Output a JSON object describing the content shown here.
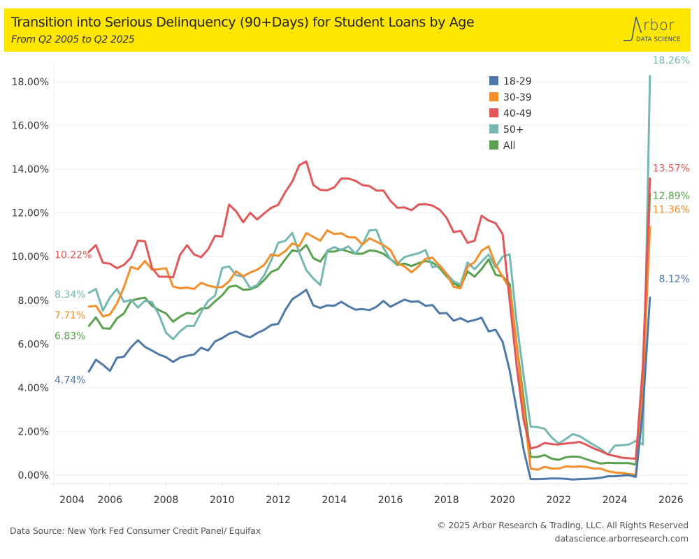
{
  "header": {
    "title": "Transition into Serious Delinquency (90+Days) for Student Loans by Age",
    "subtitle": "From Q2 2005 to Q2 2025",
    "logo_word": "rbor",
    "logo_sub": "DATA SCIENCE",
    "background_color": "#ffe600"
  },
  "footer": {
    "source": "Data Source: New York Fed Consumer Credit Panel/ Equifax",
    "copyright": "© 2025 Arbor Research & Trading, LLC. All Rights Reserved",
    "website": "datascience.arborresearch.com"
  },
  "chart_data": {
    "type": "line",
    "title": "Transition into Serious Delinquency (90+Days) for Student Loans by Age",
    "subtitle": "From Q2 2005 to Q2 2025",
    "xlabel": "",
    "ylabel": "",
    "x_start": 2005.25,
    "x_step": 0.25,
    "xlim": [
      2004,
      2026.4
    ],
    "ylim": [
      -0.3,
      19.2
    ],
    "x_ticks": [
      "2004",
      "2006",
      "2008",
      "2010",
      "2012",
      "2014",
      "2016",
      "2018",
      "2020",
      "2022",
      "2024",
      "2026"
    ],
    "y_ticks": [
      "0.00%",
      "2.00%",
      "4.00%",
      "6.00%",
      "8.00%",
      "10.00%",
      "12.00%",
      "14.00%",
      "16.00%",
      "18.00%"
    ],
    "grid": true,
    "legend_position": "top-right",
    "series": [
      {
        "name": "18-29",
        "color": "#4e79a7",
        "start_label": "4.74%",
        "end_label": "8.12%",
        "values": [
          4.74,
          5.28,
          5.05,
          4.77,
          5.37,
          5.42,
          5.85,
          6.17,
          5.87,
          5.7,
          5.52,
          5.4,
          5.18,
          5.38,
          5.46,
          5.52,
          5.83,
          5.7,
          6.12,
          6.27,
          6.47,
          6.57,
          6.4,
          6.3,
          6.5,
          6.65,
          6.87,
          6.92,
          7.55,
          8.05,
          8.25,
          8.48,
          7.77,
          7.65,
          7.77,
          7.75,
          7.93,
          7.73,
          7.57,
          7.6,
          7.55,
          7.7,
          7.97,
          7.7,
          7.87,
          8.03,
          7.93,
          7.95,
          7.75,
          7.78,
          7.4,
          7.42,
          7.07,
          7.18,
          7.02,
          7.1,
          7.2,
          6.58,
          6.65,
          6.1,
          4.8,
          3.0,
          1.15,
          -0.18,
          -0.18,
          -0.17,
          -0.15,
          -0.15,
          -0.17,
          -0.2,
          -0.18,
          -0.17,
          -0.15,
          -0.12,
          -0.05,
          -0.05,
          -0.02,
          0.0,
          -0.08,
          3.0,
          8.12
        ]
      },
      {
        "name": "30-39",
        "color": "#f28e2b",
        "start_label": "7.71%",
        "end_label": "11.36%",
        "values": [
          7.71,
          7.75,
          7.26,
          7.35,
          7.85,
          8.6,
          9.53,
          9.42,
          9.8,
          9.4,
          9.42,
          9.47,
          8.63,
          8.55,
          8.58,
          8.52,
          8.8,
          8.67,
          8.6,
          8.6,
          8.87,
          9.33,
          9.1,
          9.27,
          9.4,
          9.62,
          10.1,
          10.03,
          10.25,
          10.6,
          10.48,
          11.08,
          10.9,
          10.73,
          11.2,
          11.03,
          11.07,
          10.88,
          10.88,
          10.55,
          10.83,
          10.68,
          10.52,
          10.3,
          9.7,
          9.55,
          9.28,
          9.55,
          9.9,
          9.95,
          9.58,
          9.2,
          8.62,
          8.55,
          9.53,
          9.75,
          10.27,
          10.47,
          9.62,
          9.08,
          8.53,
          6.0,
          3.0,
          0.3,
          0.25,
          0.38,
          0.3,
          0.3,
          0.4,
          0.38,
          0.4,
          0.37,
          0.3,
          0.3,
          0.18,
          0.12,
          0.1,
          0.05,
          0.02,
          4.0,
          11.36
        ]
      },
      {
        "name": "40-49",
        "color": "#e15759",
        "start_label": "10.22%",
        "end_label": "13.57%",
        "values": [
          10.22,
          10.52,
          9.72,
          9.68,
          9.47,
          9.62,
          9.95,
          10.73,
          10.7,
          9.48,
          9.08,
          9.08,
          9.05,
          10.08,
          10.52,
          10.1,
          9.97,
          10.33,
          10.95,
          10.92,
          12.38,
          12.07,
          11.57,
          12.0,
          11.7,
          11.98,
          12.23,
          12.37,
          12.95,
          13.43,
          14.18,
          14.35,
          13.28,
          13.05,
          13.03,
          13.17,
          13.57,
          13.57,
          13.47,
          13.27,
          13.23,
          13.02,
          13.02,
          12.55,
          12.23,
          12.25,
          12.12,
          12.38,
          12.4,
          12.33,
          12.15,
          11.78,
          11.12,
          11.18,
          10.63,
          10.73,
          11.87,
          11.65,
          11.53,
          11.03,
          8.0,
          5.0,
          2.5,
          1.22,
          1.3,
          1.48,
          1.42,
          1.4,
          1.45,
          1.48,
          1.52,
          1.38,
          1.22,
          1.1,
          0.95,
          0.88,
          0.8,
          0.77,
          0.75,
          5.0,
          13.57
        ]
      },
      {
        "name": "50+",
        "color": "#76b7b2",
        "start_label": "8.34%",
        "end_label": "18.26%",
        "values": [
          8.34,
          8.52,
          7.53,
          8.13,
          8.52,
          7.93,
          8.02,
          7.67,
          7.98,
          7.92,
          7.33,
          6.52,
          6.22,
          6.58,
          6.83,
          6.83,
          7.45,
          7.97,
          8.22,
          9.48,
          9.55,
          9.15,
          9.08,
          8.55,
          8.7,
          9.15,
          9.82,
          10.63,
          10.72,
          11.08,
          10.18,
          9.38,
          9.0,
          8.7,
          10.28,
          10.43,
          10.3,
          10.47,
          10.13,
          10.55,
          11.2,
          11.22,
          10.4,
          9.88,
          9.68,
          9.97,
          10.07,
          10.15,
          10.3,
          9.5,
          9.62,
          9.22,
          8.87,
          8.72,
          9.73,
          9.42,
          9.77,
          10.1,
          9.5,
          10.0,
          10.1,
          7.0,
          4.53,
          2.22,
          2.2,
          2.12,
          1.72,
          1.45,
          1.65,
          1.88,
          1.78,
          1.58,
          1.38,
          1.2,
          0.95,
          1.35,
          1.37,
          1.4,
          1.57,
          1.4,
          18.26
        ]
      },
      {
        "name": "All",
        "color": "#59a14f",
        "start_label": "6.83%",
        "end_label": "12.89%",
        "values": [
          6.83,
          7.22,
          6.72,
          6.7,
          7.17,
          7.4,
          7.97,
          8.07,
          8.12,
          7.75,
          7.55,
          7.4,
          7.02,
          7.25,
          7.42,
          7.38,
          7.62,
          7.65,
          7.95,
          8.23,
          8.62,
          8.67,
          8.48,
          8.5,
          8.63,
          8.93,
          9.3,
          9.43,
          9.88,
          10.28,
          10.23,
          10.53,
          9.93,
          9.77,
          10.23,
          10.23,
          10.33,
          10.23,
          10.13,
          10.13,
          10.28,
          10.25,
          10.13,
          9.88,
          9.62,
          9.68,
          9.57,
          9.7,
          9.8,
          9.73,
          9.48,
          9.1,
          8.77,
          8.62,
          9.32,
          9.08,
          9.43,
          9.87,
          9.17,
          9.1,
          8.75,
          6.0,
          3.5,
          0.83,
          0.83,
          0.92,
          0.75,
          0.7,
          0.82,
          0.85,
          0.83,
          0.72,
          0.62,
          0.53,
          0.57,
          0.55,
          0.55,
          0.55,
          0.48,
          4.5,
          12.89
        ]
      }
    ]
  }
}
